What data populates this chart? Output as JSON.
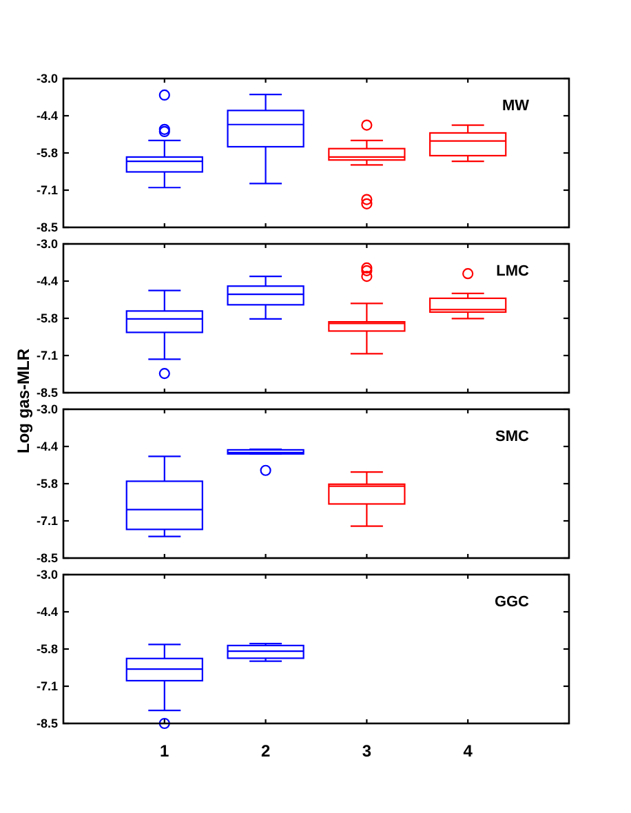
{
  "chart_data": [
    {
      "type": "box",
      "title": "MW",
      "categories": [
        "1",
        "2",
        "3",
        "4"
      ],
      "boxes": [
        {
          "low": -7.03,
          "q1": -6.45,
          "median": -6.06,
          "q3": -5.9,
          "high": -5.29,
          "outliers": [
            -4.88,
            -4.96,
            -3.61
          ]
        },
        {
          "low": -6.88,
          "q1": -5.52,
          "median": -4.7,
          "q3": -4.18,
          "high": -3.59
        },
        {
          "low": -6.19,
          "q1": -6.01,
          "median": -5.9,
          "q3": -5.59,
          "high": -5.29,
          "outliers": [
            -4.72,
            -7.47,
            -7.63
          ]
        },
        {
          "low": -6.06,
          "q1": -5.85,
          "median": -5.31,
          "q3": -5.01,
          "high": -4.72
        }
      ],
      "colors": [
        "#0000ff",
        "#0000ff",
        "#ff0000",
        "#ff0000"
      ],
      "ylim": [
        -8.5,
        -3.0
      ],
      "yticks": [
        {
          "value": -3,
          "label": "-3.0"
        },
        {
          "value": -4.375,
          "label": "-4.4"
        },
        {
          "value": -5.75,
          "label": "-5.8"
        },
        {
          "value": -7.125,
          "label": "-7.1"
        },
        {
          "value": -8.5,
          "label": "-8.5"
        }
      ],
      "tick_labels": "y"
    },
    {
      "type": "box",
      "title": "LMC",
      "ylabel": "Log gas-MLR",
      "categories": [
        "1",
        "2",
        "3",
        "4"
      ],
      "boxes": [
        {
          "low": -7.26,
          "q1": -6.27,
          "median": -5.77,
          "q3": -5.48,
          "high": -4.72,
          "outliers": [
            -7.79
          ]
        },
        {
          "low": -5.77,
          "q1": -5.25,
          "median": -4.86,
          "q3": -4.56,
          "high": -4.2
        },
        {
          "low": -7.06,
          "q1": -6.22,
          "median": -5.94,
          "q3": -5.88,
          "high": -5.2,
          "outliers": [
            -3.89,
            -3.99,
            -4.2
          ]
        },
        {
          "low": -5.76,
          "q1": -5.52,
          "median": -5.43,
          "q3": -5.01,
          "high": -4.83,
          "outliers": [
            -4.1
          ]
        }
      ],
      "colors": [
        "#0000ff",
        "#0000ff",
        "#ff0000",
        "#ff0000"
      ],
      "ylim": [
        -8.5,
        -3.0
      ],
      "yticks": [
        {
          "value": -3,
          "label": "-3.0"
        },
        {
          "value": -4.375,
          "label": "-4.4"
        },
        {
          "value": -5.75,
          "label": "-5.8"
        },
        {
          "value": -7.125,
          "label": "-7.1"
        },
        {
          "value": -8.5,
          "label": "-8.5"
        }
      ],
      "tick_labels": "y"
    },
    {
      "type": "box",
      "title": "SMC",
      "categories": [
        "1",
        "2",
        "3",
        "4"
      ],
      "boxes": [
        {
          "low": -7.7,
          "q1": -7.44,
          "median": -6.71,
          "q3": -5.66,
          "high": -4.74
        },
        {
          "low": -4.65,
          "q1": -4.65,
          "median": -4.6,
          "q3": -4.5,
          "high": -4.48,
          "outliers": [
            -5.26
          ]
        },
        {
          "low": -7.32,
          "q1": -6.5,
          "median": -5.84,
          "q3": -5.77,
          "high": -5.32
        },
        null
      ],
      "colors": [
        "#0000ff",
        "#0000ff",
        "#ff0000",
        null
      ],
      "ylim": [
        -8.5,
        -3.0
      ],
      "yticks": [
        {
          "value": -3,
          "label": "-3.0"
        },
        {
          "value": -4.375,
          "label": "-4.4"
        },
        {
          "value": -5.75,
          "label": "-5.8"
        },
        {
          "value": -7.125,
          "label": "-7.1"
        },
        {
          "value": -8.5,
          "label": "-8.5"
        }
      ],
      "tick_labels": "y"
    },
    {
      "type": "box",
      "title": "GGC",
      "categories": [
        "1",
        "2",
        "3",
        "4"
      ],
      "boxes": [
        {
          "low": -8.02,
          "q1": -6.92,
          "median": -6.49,
          "q3": -6.1,
          "high": -5.58,
          "outliers": [
            -8.5
          ]
        },
        {
          "low": -6.2,
          "q1": -6.09,
          "median": -5.83,
          "q3": -5.62,
          "high": -5.55
        },
        null,
        null
      ],
      "colors": [
        "#0000ff",
        "#0000ff",
        null,
        null
      ],
      "ylim": [
        -8.5,
        -3.0
      ],
      "yticks": [
        {
          "value": -3,
          "label": "-3.0"
        },
        {
          "value": -4.375,
          "label": "-4.4"
        },
        {
          "value": -5.75,
          "label": "-5.8"
        },
        {
          "value": -7.125,
          "label": "-7.1"
        },
        {
          "value": -8.5,
          "label": "-8.5"
        }
      ]
    }
  ]
}
